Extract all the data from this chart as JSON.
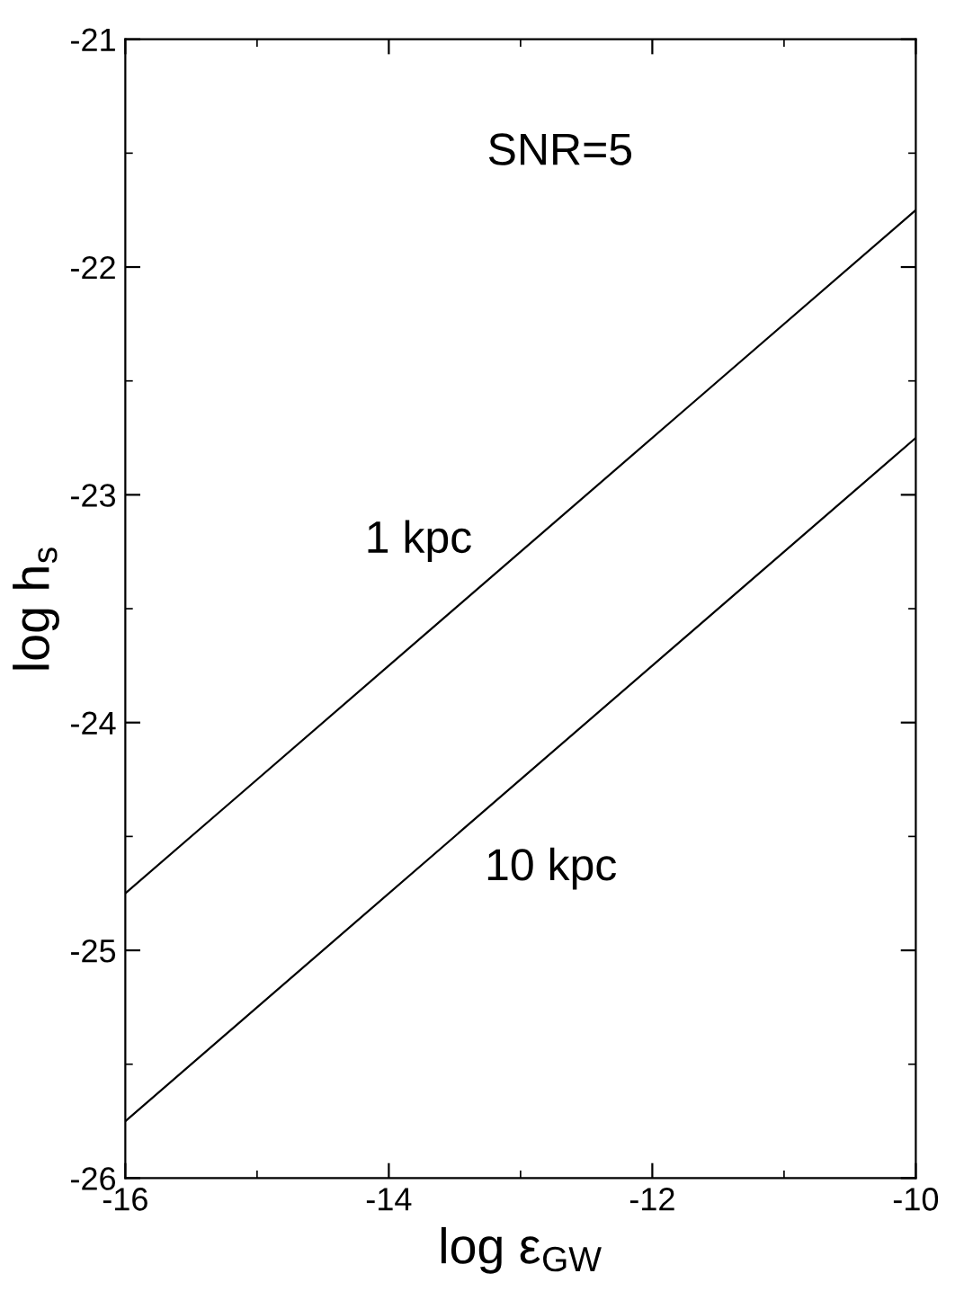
{
  "chart_data": {
    "type": "line",
    "xlabel": "log ε$_{GW}$",
    "ylabel": "log h$_{s}$",
    "xlim": [
      -16,
      -10
    ],
    "ylim": [
      -26,
      -21
    ],
    "xticks": [
      -16,
      -14,
      -12,
      -10
    ],
    "yticks": [
      -26,
      -25,
      -24,
      -23,
      -22,
      -21
    ],
    "x": [
      -16,
      -10
    ],
    "series": [
      {
        "name": "1 kpc",
        "color": "#000000",
        "values": [
          -24.75,
          -21.75
        ]
      },
      {
        "name": "10 kpc",
        "color": "#000000",
        "values": [
          -25.75,
          -22.75
        ]
      }
    ],
    "annotations": [
      "SNR=5"
    ],
    "grid": false,
    "legend": false,
    "line_style": "solid",
    "marker": "none"
  }
}
